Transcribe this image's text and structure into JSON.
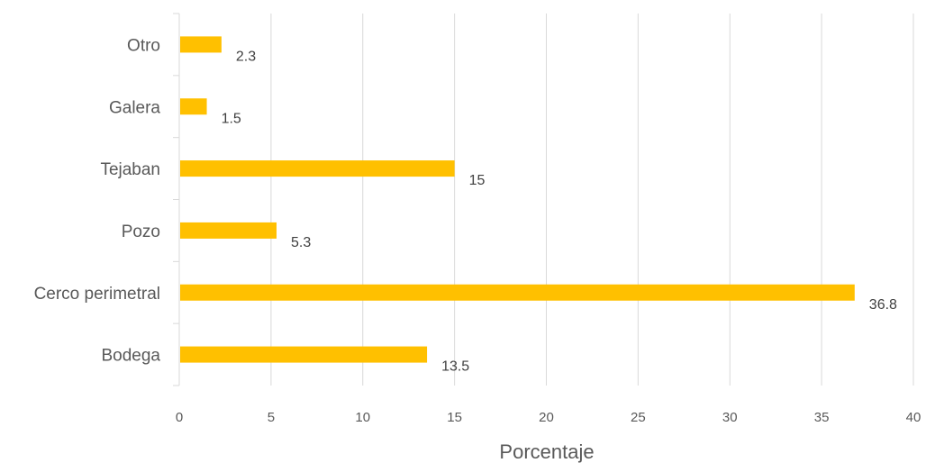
{
  "chart_data": {
    "type": "bar",
    "orientation": "horizontal",
    "categories": [
      "Bodega",
      "Cerco perimetral",
      "Pozo",
      "Tejaban",
      "Galera ",
      "Otro"
    ],
    "values": [
      13.5,
      36.8,
      5.3,
      15,
      1.5,
      2.3
    ],
    "value_labels": [
      "13.5",
      "36.8",
      "5.3",
      "15",
      "1.5",
      "2.3"
    ],
    "xlabel": "Porcentaje",
    "xlim": [
      0,
      40
    ],
    "xticks": [
      0,
      5,
      10,
      15,
      20,
      25,
      30,
      35,
      40
    ],
    "xtick_labels": [
      "0",
      "5",
      "10",
      "15",
      "20",
      "25",
      "30",
      "35",
      "40"
    ],
    "grid": "vertical",
    "legend": "none",
    "bar_color": "#FFC000",
    "grid_color": "#D9D9D9"
  }
}
